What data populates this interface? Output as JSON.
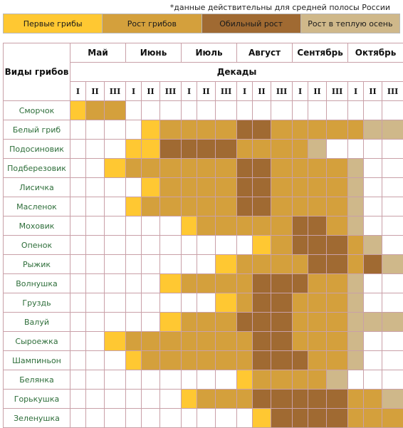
{
  "note": "*данные действительны для средней полосы России",
  "legend": [
    {
      "label": "Первые грибы",
      "color": "#ffc832"
    },
    {
      "label": "Рост грибов",
      "color": "#d4a03c"
    },
    {
      "label": "Обильный рост",
      "color": "#a06a32"
    },
    {
      "label": "Рост в теплую осень",
      "color": "#cfb88a"
    }
  ],
  "table": {
    "header_label": "Виды грибов",
    "decades_label": "Декады",
    "months": [
      "Май",
      "Июнь",
      "Июль",
      "Август",
      "Сентябрь",
      "Октябрь"
    ],
    "decade_labels": [
      "I",
      "II",
      "III",
      "I",
      "II",
      "III",
      "I",
      "II",
      "III",
      "I",
      "II",
      "III",
      "I",
      "II",
      "III",
      "I",
      "II",
      "III"
    ],
    "stage_key": {
      "0": "none",
      "1": "Первые грибы",
      "2": "Рост грибов",
      "3": "Обильный рост",
      "4": "Рост в теплую осень"
    },
    "rows": [
      {
        "name": "Сморчок",
        "stages": [
          1,
          2,
          2,
          0,
          0,
          0,
          0,
          0,
          0,
          0,
          0,
          0,
          0,
          0,
          0,
          0,
          0,
          0
        ]
      },
      {
        "name": "Белый гриб",
        "stages": [
          0,
          0,
          0,
          0,
          1,
          2,
          2,
          2,
          2,
          3,
          3,
          2,
          2,
          2,
          2,
          2,
          4,
          4
        ]
      },
      {
        "name": "Подосиновик",
        "stages": [
          0,
          0,
          0,
          1,
          1,
          3,
          3,
          3,
          3,
          2,
          2,
          2,
          2,
          4,
          0,
          0,
          0,
          0
        ]
      },
      {
        "name": "Подберезовик",
        "stages": [
          0,
          0,
          1,
          2,
          2,
          2,
          2,
          2,
          2,
          3,
          3,
          2,
          2,
          2,
          2,
          4,
          0,
          0
        ]
      },
      {
        "name": "Лисичка",
        "stages": [
          0,
          0,
          0,
          0,
          1,
          2,
          2,
          2,
          2,
          3,
          3,
          2,
          2,
          2,
          2,
          4,
          0,
          0
        ]
      },
      {
        "name": "Масленок",
        "stages": [
          0,
          0,
          0,
          1,
          2,
          2,
          2,
          2,
          2,
          3,
          3,
          2,
          2,
          2,
          2,
          4,
          0,
          0
        ]
      },
      {
        "name": "Моховик",
        "stages": [
          0,
          0,
          0,
          0,
          0,
          0,
          1,
          2,
          2,
          2,
          2,
          2,
          3,
          3,
          2,
          4,
          0,
          0
        ]
      },
      {
        "name": "Опенок",
        "stages": [
          0,
          0,
          0,
          0,
          0,
          0,
          0,
          0,
          0,
          0,
          1,
          2,
          3,
          3,
          3,
          2,
          4,
          0
        ]
      },
      {
        "name": "Рыжик",
        "stages": [
          0,
          0,
          0,
          0,
          0,
          0,
          0,
          0,
          1,
          2,
          2,
          2,
          2,
          3,
          3,
          2,
          3,
          4
        ]
      },
      {
        "name": "Волнушка",
        "stages": [
          0,
          0,
          0,
          0,
          0,
          1,
          2,
          2,
          2,
          2,
          3,
          3,
          3,
          2,
          2,
          4,
          0,
          0
        ]
      },
      {
        "name": "Груздь",
        "stages": [
          0,
          0,
          0,
          0,
          0,
          0,
          0,
          0,
          1,
          2,
          3,
          3,
          2,
          2,
          2,
          4,
          0,
          0
        ]
      },
      {
        "name": "Валуй",
        "stages": [
          0,
          0,
          0,
          0,
          0,
          1,
          2,
          2,
          2,
          3,
          3,
          3,
          2,
          2,
          2,
          4,
          4,
          4
        ]
      },
      {
        "name": "Сыроежка",
        "stages": [
          0,
          0,
          1,
          2,
          2,
          2,
          2,
          2,
          2,
          2,
          3,
          3,
          2,
          2,
          2,
          4,
          0,
          0
        ]
      },
      {
        "name": "Шампиньон",
        "stages": [
          0,
          0,
          0,
          1,
          2,
          2,
          2,
          2,
          2,
          2,
          3,
          3,
          3,
          2,
          2,
          4,
          0,
          0
        ]
      },
      {
        "name": "Белянка",
        "stages": [
          0,
          0,
          0,
          0,
          0,
          0,
          0,
          0,
          0,
          1,
          2,
          2,
          2,
          2,
          4,
          0,
          0,
          0
        ]
      },
      {
        "name": "Горькушка",
        "stages": [
          0,
          0,
          0,
          0,
          0,
          0,
          1,
          2,
          2,
          2,
          3,
          3,
          3,
          3,
          3,
          2,
          2,
          4
        ]
      },
      {
        "name": "Зеленушка",
        "stages": [
          0,
          0,
          0,
          0,
          0,
          0,
          0,
          0,
          0,
          0,
          1,
          3,
          3,
          3,
          3,
          2,
          2,
          2
        ]
      }
    ]
  }
}
